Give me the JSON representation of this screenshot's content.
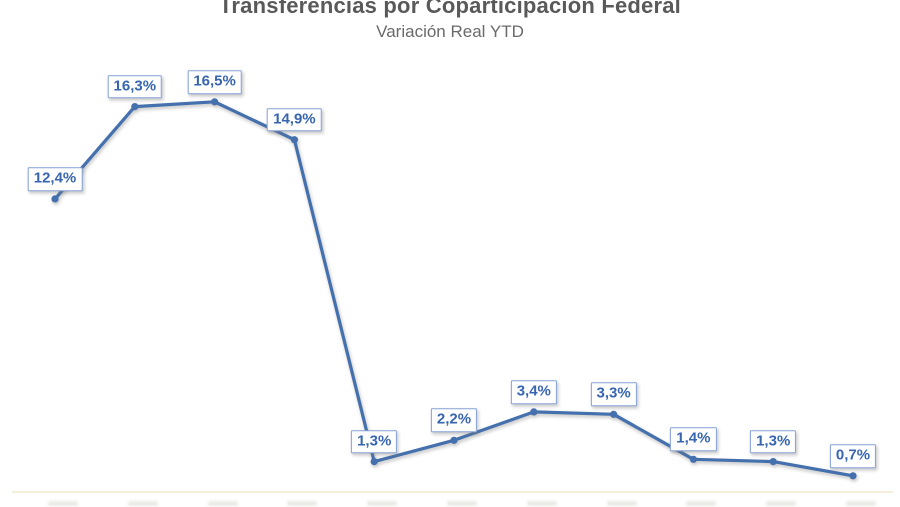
{
  "chart": {
    "title": "Transferencias por Coparticipación Federal",
    "subtitle": "Variación Real YTD"
  },
  "chart_data": {
    "type": "line",
    "title": "Transferencias por Coparticipación Federal",
    "subtitle": "Variación Real YTD",
    "series": [
      {
        "name": "Variación Real YTD",
        "values": [
          12.4,
          16.3,
          16.5,
          14.9,
          1.3,
          2.2,
          3.4,
          3.3,
          1.4,
          1.3,
          0.7
        ],
        "data_labels": [
          "12,4%",
          "16,3%",
          "16,5%",
          "14,9%",
          "1,3%",
          "2,2%",
          "3,4%",
          "3,3%",
          "1,4%",
          "1,3%",
          "0,7%"
        ]
      }
    ],
    "x": [
      1,
      2,
      3,
      4,
      5,
      6,
      7,
      8,
      9,
      10,
      11
    ],
    "xlabel": "",
    "ylabel": "",
    "ylim": [
      0,
      18
    ],
    "grid": false,
    "legend": false,
    "y_axis_visible": false,
    "x_axis_baseline_value": 0,
    "x_axis_tick_labels_cut_off": true,
    "marker": "circle",
    "data_labels_boxed": true
  },
  "colors": {
    "line": "#4470ad",
    "marker": "#4470ad",
    "label_text": "#3765b0",
    "label_border": "#87a3d6",
    "label_fill": "#ffffff",
    "title": "#595959",
    "subtitle": "#6a6a6a",
    "axis_line": "#f4eedb",
    "background": "#ffffff"
  }
}
